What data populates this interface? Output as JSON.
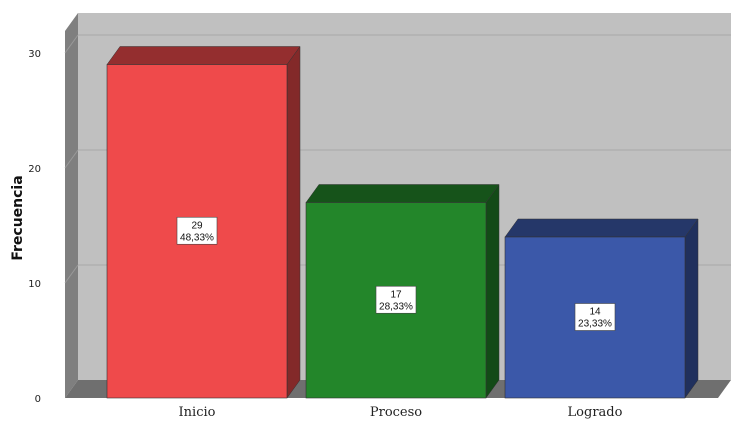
{
  "chart_data": {
    "type": "bar",
    "title": "",
    "xlabel": "",
    "ylabel": "Frecuencia",
    "ylim": [
      0,
      30
    ],
    "yticks": [
      0,
      10,
      20,
      30
    ],
    "grid": true,
    "categories": [
      "Inicio",
      "Proceso",
      "Logrado"
    ],
    "values": [
      29,
      17,
      14
    ],
    "percent_labels": [
      "48,33%",
      "28,33%",
      "23,33%"
    ],
    "colors": {
      "Inicio": "#ef4a4b",
      "Proceso": "#23862a",
      "Logrado": "#3b58a9",
      "plot_back": "#c0c0c0",
      "side_wall": "#7f7f7f",
      "floor": "#6f6f6f"
    }
  }
}
